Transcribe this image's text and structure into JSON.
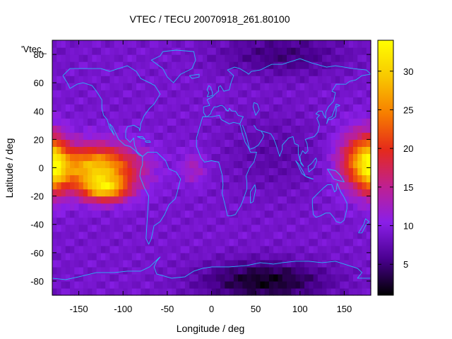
{
  "chart_data": {
    "type": "heatmap",
    "title": "VTEC / TECU 20070918_261.80100",
    "xlabel": "Longitude / deg",
    "ylabel": "Latitude / deg",
    "plot_key": "'Vtec_",
    "xlim": [
      -180,
      180
    ],
    "ylim": [
      -90,
      90
    ],
    "x_ticks": [
      -150,
      -100,
      -50,
      0,
      50,
      100,
      150
    ],
    "y_ticks": [
      -80,
      -60,
      -40,
      -20,
      0,
      20,
      40,
      60,
      80
    ],
    "colorbar": {
      "range": [
        1,
        34
      ],
      "ticks": [
        5,
        10,
        15,
        20,
        25,
        30
      ],
      "palette": [
        "#000000",
        "#4a0090",
        "#8a1fe8",
        "#c0208f",
        "#e52a1a",
        "#f77f00",
        "#f8c800",
        "#ffff00"
      ]
    },
    "grid": false,
    "overlay": "coastlines",
    "features": [
      {
        "name": "equatorial anomaly east Pacific",
        "lon": -130,
        "lat": 0,
        "vtec": 29
      },
      {
        "name": "equatorial anomaly south crest",
        "lon": -120,
        "lat": -15,
        "vtec": 31
      },
      {
        "name": "equatorial anomaly west Pacific",
        "lon": 170,
        "lat": 5,
        "vtec": 24
      },
      {
        "name": "high-latitude minimum south",
        "lon": 60,
        "lat": -80,
        "vtec": 2
      },
      {
        "name": "high-latitude minimum north",
        "lon": 80,
        "lat": 80,
        "vtec": 5
      }
    ],
    "background_vtec": 9
  },
  "colors": {
    "coastline": "#29b6f6",
    "frame": "#000000"
  }
}
